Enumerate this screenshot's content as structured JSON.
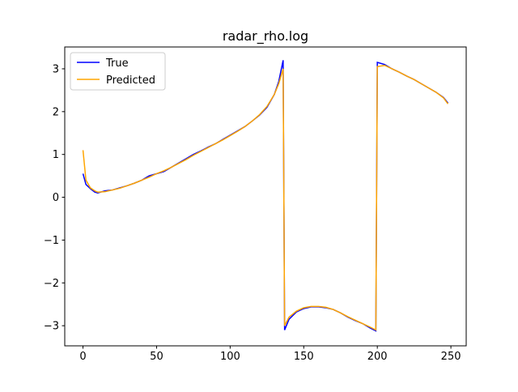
{
  "chart_data": {
    "type": "line",
    "title": "radar_rho.log",
    "x": [
      0,
      2,
      5,
      8,
      10,
      15,
      20,
      25,
      30,
      35,
      40,
      45,
      50,
      55,
      60,
      65,
      70,
      75,
      80,
      85,
      90,
      95,
      100,
      105,
      110,
      115,
      120,
      125,
      130,
      133,
      136,
      137,
      140,
      145,
      150,
      155,
      160,
      165,
      170,
      175,
      180,
      185,
      190,
      195,
      199,
      200,
      205,
      210,
      215,
      220,
      225,
      230,
      235,
      240,
      245,
      248
    ],
    "series": [
      {
        "name": "True",
        "color": "#0000ff",
        "values": [
          0.55,
          0.3,
          0.2,
          0.12,
          0.1,
          0.15,
          0.17,
          0.22,
          0.27,
          0.33,
          0.4,
          0.5,
          0.55,
          0.6,
          0.7,
          0.8,
          0.9,
          1.0,
          1.08,
          1.17,
          1.25,
          1.35,
          1.45,
          1.55,
          1.65,
          1.78,
          1.92,
          2.1,
          2.4,
          2.7,
          3.2,
          -3.1,
          -2.85,
          -2.68,
          -2.6,
          -2.56,
          -2.56,
          -2.58,
          -2.62,
          -2.7,
          -2.8,
          -2.88,
          -2.95,
          -3.05,
          -3.12,
          3.15,
          3.1,
          3.0,
          2.92,
          2.83,
          2.75,
          2.65,
          2.55,
          2.45,
          2.33,
          2.2
        ]
      },
      {
        "name": "Predicted",
        "color": "#ffa500",
        "values": [
          1.1,
          0.4,
          0.22,
          0.15,
          0.12,
          0.13,
          0.17,
          0.21,
          0.27,
          0.33,
          0.4,
          0.47,
          0.55,
          0.62,
          0.7,
          0.79,
          0.88,
          0.98,
          1.07,
          1.16,
          1.25,
          1.34,
          1.44,
          1.54,
          1.65,
          1.78,
          1.93,
          2.12,
          2.4,
          2.65,
          3.0,
          -3.0,
          -2.8,
          -2.66,
          -2.58,
          -2.55,
          -2.55,
          -2.57,
          -2.62,
          -2.7,
          -2.79,
          -2.87,
          -2.95,
          -3.03,
          -3.1,
          3.05,
          3.08,
          3.0,
          2.92,
          2.83,
          2.75,
          2.65,
          2.55,
          2.45,
          2.32,
          2.18
        ]
      }
    ],
    "xlim": [
      -12.4,
      260.4
    ],
    "ylim": [
      -3.47,
      3.51
    ],
    "xticks": [
      0,
      50,
      100,
      150,
      200,
      250
    ],
    "yticks": [
      {
        "value": -3,
        "label": "−3"
      },
      {
        "value": -2,
        "label": "−2"
      },
      {
        "value": -1,
        "label": "−1"
      },
      0,
      1,
      2,
      3
    ],
    "legend": "upper left",
    "grid": false
  }
}
